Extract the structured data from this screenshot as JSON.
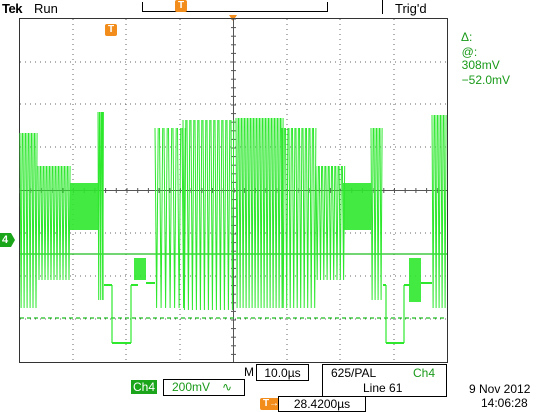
{
  "header": {
    "brand": "Tek",
    "acquisition_state": "Run",
    "trigger_state": "Trig'd"
  },
  "cursor_readout": {
    "delta_label": "Δ:",
    "delta_value": "308mV",
    "at_label": "@:",
    "at_value": "−52.0mV"
  },
  "markers": {
    "trigger_position": "T",
    "channel": "4"
  },
  "bottom": {
    "timebase_prefix": "M",
    "timebase": "10.0µs",
    "video_standard": "625/PAL",
    "trigger_channel": "Ch4",
    "video_line": "Line 61",
    "vertical_channel": "Ch4",
    "vertical_scale": "200mV",
    "coupling_symbol": "∿",
    "trigger_offset_symbol": "T→",
    "trigger_offset": "28.4200µs",
    "date": "9 Nov 2012",
    "time": "14:06:28"
  },
  "colors": {
    "trace": "#2ee82e",
    "grid": "#555555",
    "label_green": "#1aa51a",
    "trigger_orange": "#f28c1a"
  }
}
